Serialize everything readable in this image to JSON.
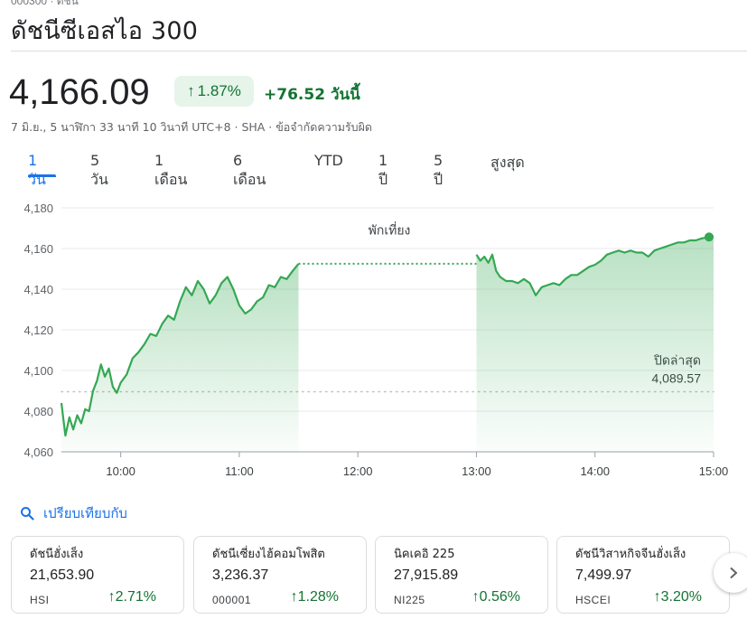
{
  "header": {
    "crumb": "000300 · ดัชนี",
    "title": "ดัชนีซีเอสไอ 300"
  },
  "quote": {
    "price": "4,166.09",
    "pct_change": "1.87%",
    "abs_change": "+76.52",
    "period_label": "วันนี้",
    "timestamp": "7 มิ.ย., 5 นาฬิกา 33 นาที 10 วินาที UTC+8 · SHA · ข้อจำกัดความรับผิด",
    "up_color": "#137333"
  },
  "tabs": [
    "1 วัน",
    "5 วัน",
    "1 เดือน",
    "6 เดือน",
    "YTD",
    "1 ปี",
    "5 ปี",
    "สูงสุด"
  ],
  "active_tab": "1 วัน",
  "chart_data": {
    "type": "area",
    "y_ticks": [
      "4,180",
      "4,160",
      "4,140",
      "4,120",
      "4,100",
      "4,080",
      "4,060"
    ],
    "x_ticks": [
      "10:00",
      "11:00",
      "12:00",
      "13:00",
      "14:00",
      "15:00"
    ],
    "ylim": [
      4060,
      4180
    ],
    "xlim": [
      "09:30",
      "15:00"
    ],
    "lunch_label": "พักเที่ยง",
    "lunch_break": [
      "11:30",
      "13:00"
    ],
    "previous_close_label": "ปิดล่าสุด",
    "previous_close_value_label": "4,089.57",
    "previous_close": 4089.57,
    "line_color": "#34a853",
    "morning": {
      "x": [
        "09:30",
        "09:32",
        "09:34",
        "09:36",
        "09:38",
        "09:40",
        "09:42",
        "09:44",
        "09:46",
        "09:48",
        "09:50",
        "09:52",
        "09:54",
        "09:56",
        "09:58",
        "10:00",
        "10:03",
        "10:06",
        "10:09",
        "10:12",
        "10:15",
        "10:18",
        "10:21",
        "10:24",
        "10:27",
        "10:30",
        "10:33",
        "10:36",
        "10:39",
        "10:42",
        "10:45",
        "10:48",
        "10:51",
        "10:54",
        "10:57",
        "11:00",
        "11:03",
        "11:06",
        "11:09",
        "11:12",
        "11:15",
        "11:18",
        "11:21",
        "11:24",
        "11:27",
        "11:30"
      ],
      "y": [
        4084,
        4068,
        4077,
        4071,
        4078,
        4074,
        4081,
        4080,
        4090,
        4095,
        4103,
        4097,
        4101,
        4092,
        4089,
        4094,
        4098,
        4106,
        4109,
        4113,
        4118,
        4117,
        4123,
        4127,
        4125,
        4134,
        4141,
        4137,
        4144,
        4140,
        4133,
        4137,
        4143,
        4146,
        4140,
        4132,
        4128,
        4130,
        4134,
        4136,
        4142,
        4141,
        4146,
        4145,
        4149,
        4152.5
      ]
    },
    "afternoon": {
      "x": [
        "13:00",
        "13:02",
        "13:04",
        "13:06",
        "13:08",
        "13:10",
        "13:12",
        "13:15",
        "13:18",
        "13:21",
        "13:24",
        "13:27",
        "13:30",
        "13:33",
        "13:36",
        "13:39",
        "13:42",
        "13:45",
        "13:48",
        "13:51",
        "13:54",
        "13:57",
        "14:00",
        "14:03",
        "14:06",
        "14:09",
        "14:12",
        "14:15",
        "14:18",
        "14:21",
        "14:24",
        "14:27",
        "14:30",
        "14:33",
        "14:36",
        "14:39",
        "14:42",
        "14:45",
        "14:48",
        "14:51",
        "14:54",
        "14:57",
        "15:00"
      ],
      "y": [
        4157,
        4154,
        4156,
        4153,
        4157,
        4149,
        4146,
        4144,
        4144,
        4143,
        4145,
        4143,
        4137,
        4141,
        4142,
        4143,
        4142,
        4145,
        4147,
        4147,
        4149,
        4151,
        4152,
        4154,
        4157,
        4158,
        4159,
        4158,
        4159,
        4158,
        4158,
        4156,
        4159,
        4160,
        4161,
        4162,
        4163,
        4163,
        4164,
        4164,
        4165,
        4165.5,
        4166.09
      ]
    }
  },
  "compare": {
    "label": "เปรียบเทียบกับ"
  },
  "cards": [
    {
      "name": "ดัชนีฮั่งเส็ง",
      "price": "21,653.90",
      "symbol": "HSI",
      "change": "2.71%"
    },
    {
      "name": "ดัชนีเซี่ยงไฮ้คอมโพสิต",
      "price": "3,236.37",
      "symbol": "000001",
      "change": "1.28%"
    },
    {
      "name": "นิคเคอิ 225",
      "price": "27,915.89",
      "symbol": "NI225",
      "change": "0.56%"
    },
    {
      "name": "ดัชนีวิสาหกิจจีนฮั่งเส็ง",
      "price": "7,499.97",
      "symbol": "HSCEI",
      "change": "3.20%"
    }
  ]
}
